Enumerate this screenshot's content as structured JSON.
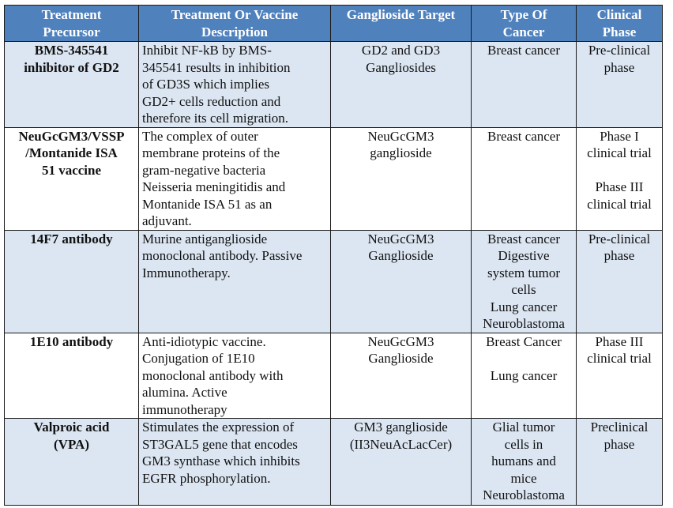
{
  "columns": {
    "precursor": [
      "Treatment",
      "Precursor"
    ],
    "description": [
      "Treatment Or Vaccine",
      "Description"
    ],
    "target": [
      "Ganglioside Target"
    ],
    "cancer": [
      "Type Of",
      "Cancer"
    ],
    "phase": [
      "Clinical",
      "Phase"
    ]
  },
  "rows": [
    {
      "precursor": [
        "BMS-345541",
        "inhibitor of GD2"
      ],
      "description": [
        "Inhibit NF-kB by BMS-",
        "345541 results in inhibition",
        "of GD3S which implies",
        "GD2+ cells reduction and",
        "therefore its cell migration."
      ],
      "target": [
        "GD2 and GD3",
        "Gangliosides"
      ],
      "cancer": [
        "Breast cancer"
      ],
      "phase": [
        "Pre-clinical",
        "phase"
      ]
    },
    {
      "precursor": [
        "NeuGcGM3/VSSP",
        "/Montanide ISA",
        "51 vaccine"
      ],
      "description": [
        "The complex of outer",
        "membrane proteins of the",
        "gram-negative bacteria",
        "Neisseria meningitidis and",
        "Montanide ISA 51 as an",
        "adjuvant."
      ],
      "target": [
        "NeuGcGM3",
        "ganglioside"
      ],
      "cancer": [
        "Breast cancer"
      ],
      "phase": [
        "Phase I",
        "clinical trial",
        "",
        "Phase III",
        "clinical trial"
      ]
    },
    {
      "precursor": [
        "14F7 antibody"
      ],
      "description": [
        "Murine antiganglioside",
        "monoclonal antibody. Passive",
        "Immunotherapy."
      ],
      "target": [
        "NeuGcGM3",
        "Ganglioside"
      ],
      "cancer": [
        "Breast cancer",
        "Digestive",
        "system tumor",
        "cells",
        "Lung cancer",
        "Neuroblastoma"
      ],
      "phase": [
        "Pre-clinical",
        "phase"
      ]
    },
    {
      "precursor": [
        "1E10 antibody"
      ],
      "description": [
        "Anti-idiotypic vaccine.",
        "Conjugation of 1E10",
        "monoclonal antibody with",
        "alumina. Active",
        "immunotherapy"
      ],
      "target": [
        "NeuGcGM3",
        "Ganglioside"
      ],
      "cancer": [
        "Breast Cancer",
        "",
        "Lung cancer"
      ],
      "phase": [
        "Phase III",
        "clinical trial"
      ]
    },
    {
      "precursor": [
        "Valproic acid",
        "(VPA)"
      ],
      "description": [
        "Stimulates the expression of",
        "ST3GAL5 gene that encodes",
        "GM3 synthase which inhibits",
        "EGFR phosphorylation."
      ],
      "target": [
        "GM3 ganglioside",
        "(II3NeuAcLacCer)"
      ],
      "cancer": [
        "Glial tumor",
        "cells in",
        "humans and",
        "mice",
        "Neuroblastoma"
      ],
      "phase": [
        "Preclinical",
        "phase"
      ]
    }
  ]
}
